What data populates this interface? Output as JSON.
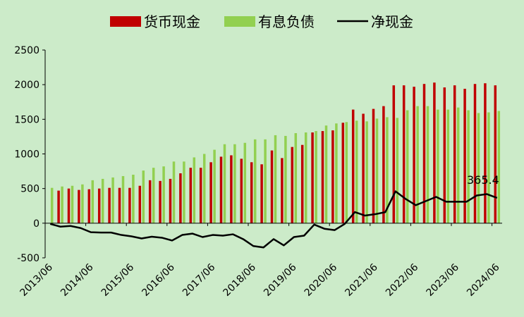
{
  "chart_data": {
    "type": "bar",
    "legend_position": "top",
    "grid": false,
    "ylim": [
      -500,
      2500
    ],
    "yticks": [
      -500,
      0,
      500,
      1000,
      1500,
      2000,
      2500
    ],
    "yticklabels": [
      "-500",
      "0",
      "500",
      "1000",
      "1500",
      "2000",
      "2500"
    ],
    "xticklabels": [
      "2013/06",
      "2014/06",
      "2015/06",
      "2016/06",
      "2017/06",
      "2018/06",
      "2019/06",
      "2020/06",
      "2021/06",
      "2022/06",
      "2023/06",
      "2024/06"
    ],
    "annotation": "365.4",
    "series": [
      {
        "name": "货币现金",
        "type": "bar",
        "color": "#c00000",
        "values": [
          null,
          470,
          500,
          480,
          490,
          500,
          510,
          510,
          510,
          540,
          620,
          610,
          640,
          720,
          800,
          800,
          880,
          960,
          980,
          930,
          880,
          850,
          1050,
          940,
          1100,
          1130,
          1310,
          1330,
          1340,
          1450,
          1640,
          1580,
          1650,
          1690,
          1990,
          1990,
          1970,
          2010,
          2030,
          1960,
          1990,
          1940,
          2010,
          2020,
          1990
        ]
      },
      {
        "name": "有息负债",
        "type": "bar",
        "color": "#92d050",
        "values": [
          510,
          530,
          540,
          560,
          620,
          640,
          660,
          680,
          700,
          760,
          800,
          820,
          890,
          890,
          950,
          1000,
          1060,
          1140,
          1140,
          1160,
          1210,
          1210,
          1270,
          1260,
          1300,
          1310,
          1330,
          1410,
          1440,
          1460,
          1480,
          1470,
          1510,
          1530,
          1520,
          1630,
          1690,
          1690,
          1640,
          1640,
          1670,
          1630,
          1590,
          1600,
          1620
        ]
      },
      {
        "name": "净现金",
        "type": "line",
        "color": "#000000",
        "values": [
          -10,
          -50,
          -40,
          -70,
          -130,
          -135,
          -135,
          -170,
          -190,
          -220,
          -195,
          -210,
          -250,
          -170,
          -150,
          -200,
          -170,
          -180,
          -160,
          -230,
          -330,
          -350,
          -230,
          -320,
          -200,
          -180,
          -20,
          -80,
          -100,
          -10,
          160,
          110,
          130,
          160,
          460,
          350,
          260,
          320,
          380,
          310,
          310,
          310,
          400,
          420,
          365.4
        ]
      }
    ]
  }
}
